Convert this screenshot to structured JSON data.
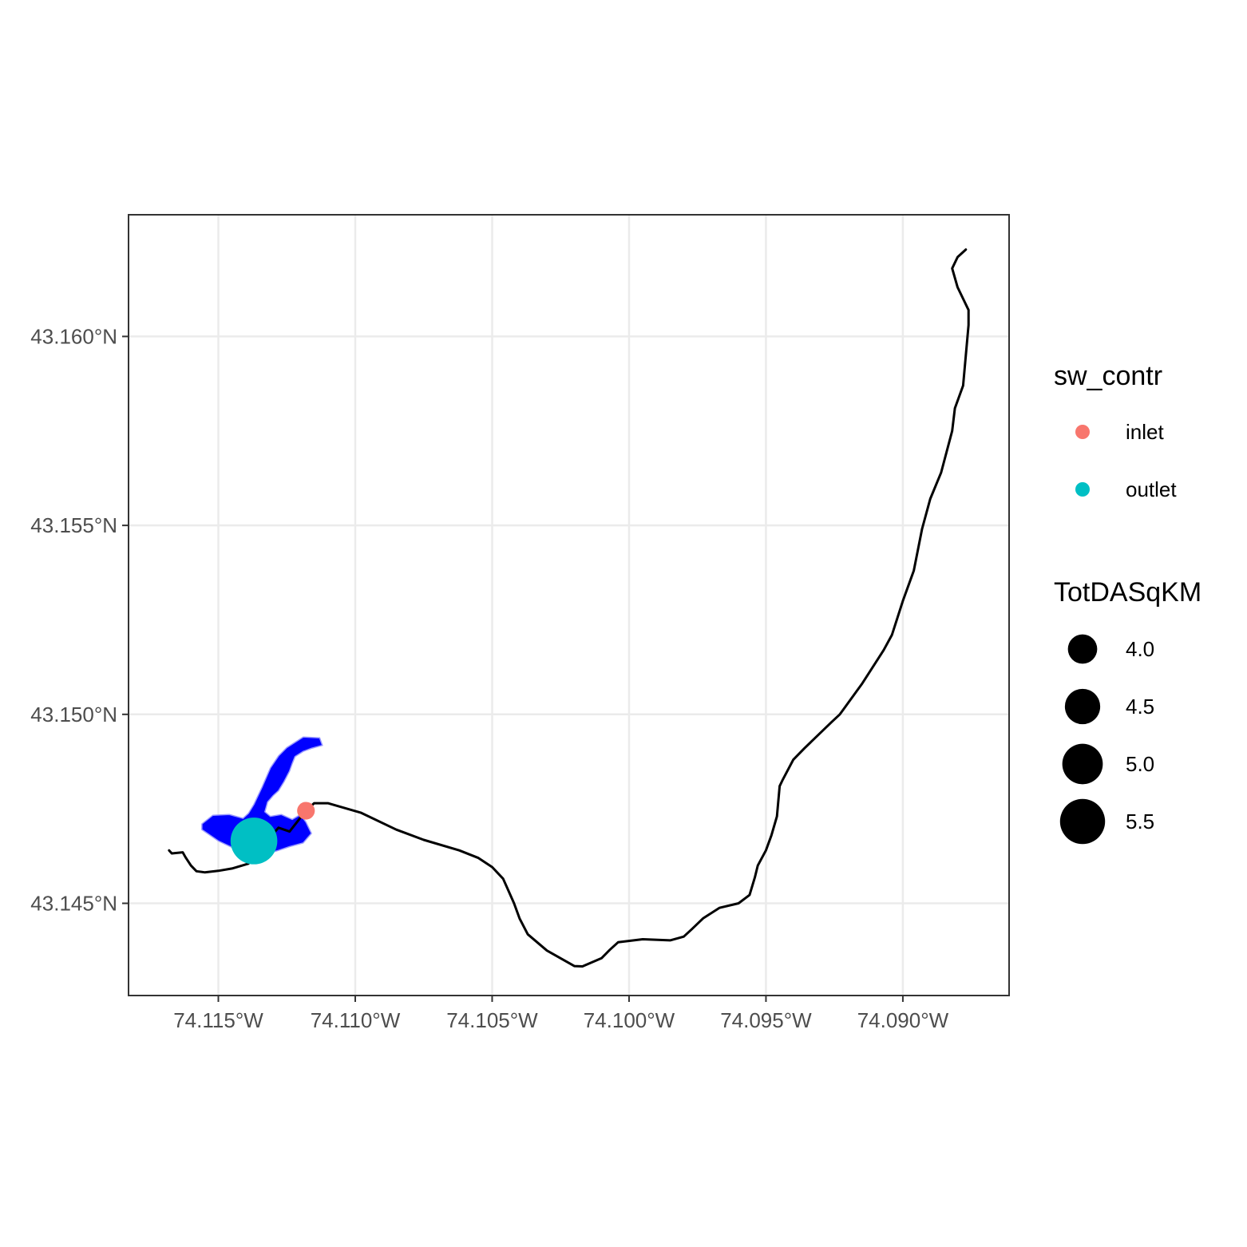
{
  "chart_data": {
    "type": "scatter",
    "x_ticks": [
      {
        "value": -74.115,
        "label": "74.115°W"
      },
      {
        "value": -74.11,
        "label": "74.110°W"
      },
      {
        "value": -74.105,
        "label": "74.105°W"
      },
      {
        "value": -74.1,
        "label": "74.100°W"
      },
      {
        "value": -74.095,
        "label": "74.095°W"
      },
      {
        "value": -74.09,
        "label": "74.090°W"
      }
    ],
    "y_ticks": [
      {
        "value": 43.145,
        "label": "43.145°N"
      },
      {
        "value": 43.15,
        "label": "43.150°N"
      },
      {
        "value": 43.155,
        "label": "43.155°N"
      },
      {
        "value": 43.16,
        "label": "43.160°N"
      }
    ],
    "xlim": [
      -74.11828,
      -74.08612
    ],
    "ylim": [
      43.14256,
      43.16322
    ],
    "grid": true,
    "legend_position": "right",
    "points": [
      {
        "lon": -74.1118,
        "lat": 43.14745,
        "sw_contr": "inlet",
        "TotDASqKM": 3.3
      },
      {
        "lon": -74.1137,
        "lat": 43.14665,
        "sw_contr": "outlet",
        "TotDASqKM": 5.7
      }
    ],
    "flowline": [
      [
        -74.1168,
        43.1464
      ],
      [
        -74.1167,
        43.14632
      ],
      [
        -74.1163,
        43.14635
      ],
      [
        -74.1162,
        43.14622
      ],
      [
        -74.116,
        43.146
      ],
      [
        -74.1158,
        43.14585
      ],
      [
        -74.1155,
        43.14582
      ],
      [
        -74.115,
        43.14586
      ],
      [
        -74.1145,
        43.14592
      ],
      [
        -74.1139,
        43.14605
      ],
      [
        -74.1136,
        43.1463
      ],
      [
        -74.1132,
        43.14668
      ],
      [
        -74.1128,
        43.147
      ],
      [
        -74.1124,
        43.1469
      ],
      [
        -74.1118,
        43.14745
      ],
      [
        -74.1115,
        43.14765
      ],
      [
        -74.111,
        43.14765
      ],
      [
        -74.1098,
        43.1474
      ],
      [
        -74.1085,
        43.14695
      ],
      [
        -74.1075,
        43.14668
      ],
      [
        -74.1062,
        43.1464
      ],
      [
        -74.1055,
        43.1462
      ],
      [
        -74.105,
        43.14596
      ],
      [
        -74.1046,
        43.14565
      ],
      [
        -74.1042,
        43.145
      ],
      [
        -74.104,
        43.1446
      ],
      [
        -74.1037,
        43.14418
      ],
      [
        -74.103,
        43.14375
      ],
      [
        -74.102,
        43.14334
      ],
      [
        -74.1017,
        43.14333
      ],
      [
        -74.101,
        43.14355
      ],
      [
        -74.1007,
        43.14377
      ],
      [
        -74.1004,
        43.14397
      ],
      [
        -74.0995,
        43.14405
      ],
      [
        -74.0985,
        43.14402
      ],
      [
        -74.098,
        43.14412
      ],
      [
        -74.0977,
        43.14432
      ],
      [
        -74.0973,
        43.1446
      ],
      [
        -74.0967,
        43.14488
      ],
      [
        -74.096,
        43.145
      ],
      [
        -74.0956,
        43.14522
      ],
      [
        -74.0954,
        43.1457
      ],
      [
        -74.0953,
        43.146
      ],
      [
        -74.095,
        43.1464
      ],
      [
        -74.0948,
        43.1468
      ],
      [
        -74.0946,
        43.1473
      ],
      [
        -74.0945,
        43.1481
      ],
      [
        -74.0944,
        43.14825
      ],
      [
        -74.094,
        43.1488
      ],
      [
        -74.0936,
        43.1491
      ],
      [
        -74.0926,
        43.1498
      ],
      [
        -74.0923,
        43.15
      ],
      [
        -74.0917,
        43.1506
      ],
      [
        -74.0915,
        43.1508
      ],
      [
        -74.0907,
        43.1517
      ],
      [
        -74.0904,
        43.1521
      ],
      [
        -74.09,
        43.153
      ],
      [
        -74.0896,
        43.1538
      ],
      [
        -74.0893,
        43.1549
      ],
      [
        -74.089,
        43.1557
      ],
      [
        -74.0886,
        43.1564
      ],
      [
        -74.0882,
        43.1575
      ],
      [
        -74.0881,
        43.1581
      ],
      [
        -74.0878,
        43.1587
      ],
      [
        -74.0877,
        43.1595
      ],
      [
        -74.0876,
        43.1603
      ],
      [
        -74.0876,
        43.1607
      ],
      [
        -74.088,
        43.1613
      ],
      [
        -74.0882,
        43.1618
      ],
      [
        -74.088,
        43.1621
      ],
      [
        -74.0877,
        43.1623
      ]
    ],
    "waterbody": [
      [
        -74.1156,
        43.1471
      ],
      [
        -74.1152,
        43.14733
      ],
      [
        -74.1146,
        43.14735
      ],
      [
        -74.1141,
        43.14725
      ],
      [
        -74.1139,
        43.14738
      ],
      [
        -74.1137,
        43.14762
      ],
      [
        -74.1134,
        43.14808
      ],
      [
        -74.1131,
        43.14858
      ],
      [
        -74.1128,
        43.1489
      ],
      [
        -74.1125,
        43.14912
      ],
      [
        -74.1119,
        43.1494
      ],
      [
        -74.1113,
        43.14938
      ],
      [
        -74.1112,
        43.14918
      ],
      [
        -74.1116,
        43.1491
      ],
      [
        -74.1119,
        43.14902
      ],
      [
        -74.1122,
        43.14888
      ],
      [
        -74.1123,
        43.1487
      ],
      [
        -74.1124,
        43.1485
      ],
      [
        -74.1126,
        43.14822
      ],
      [
        -74.1128,
        43.14798
      ],
      [
        -74.113,
        43.14785
      ],
      [
        -74.1132,
        43.14768
      ],
      [
        -74.1133,
        43.14742
      ],
      [
        -74.1131,
        43.1473
      ],
      [
        -74.1127,
        43.14735
      ],
      [
        -74.1123,
        43.14722
      ],
      [
        -74.112,
        43.14735
      ],
      [
        -74.1118,
        43.14715
      ],
      [
        -74.1116,
        43.14685
      ],
      [
        -74.1119,
        43.1466
      ],
      [
        -74.1124,
        43.1465
      ],
      [
        -74.1128,
        43.1464
      ],
      [
        -74.1135,
        43.14625
      ],
      [
        -74.114,
        43.1463
      ],
      [
        -74.1145,
        43.14648
      ],
      [
        -74.115,
        43.14665
      ],
      [
        -74.1153,
        43.1468
      ],
      [
        -74.1156,
        43.14695
      ]
    ],
    "colors": {
      "inlet": "#F8766D",
      "outlet": "#00BFC4",
      "waterbody_fill": "#0000FF",
      "waterbody_outline": "#9999FF",
      "flowline": "#000000",
      "grid": "#EBEBEB",
      "panel_border": "#333333"
    },
    "legend": {
      "color": {
        "title": "sw_contr",
        "entries": [
          {
            "label": "inlet",
            "color": "#F8766D"
          },
          {
            "label": "outlet",
            "color": "#00BFC4"
          }
        ]
      },
      "size": {
        "title": "TotDASqKM",
        "entries": [
          {
            "label": "4.0",
            "value": 4.0
          },
          {
            "label": "4.5",
            "value": 4.5
          },
          {
            "label": "5.0",
            "value": 5.0
          },
          {
            "label": "5.5",
            "value": 5.5
          }
        ]
      }
    }
  }
}
